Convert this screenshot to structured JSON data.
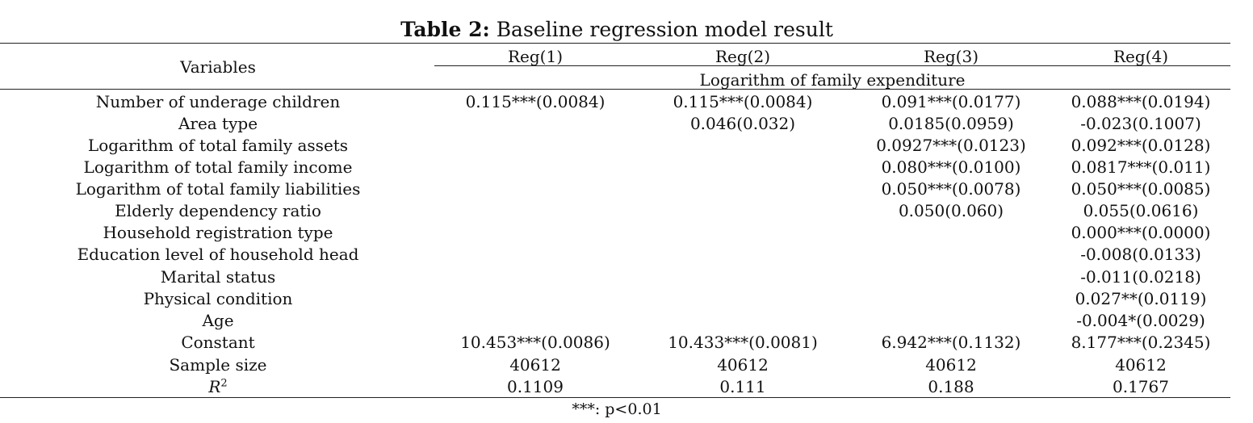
{
  "table": {
    "caption_label": "Table 2:",
    "caption_text": "Baseline regression model result",
    "variables_header": "Variables",
    "column_headers": [
      "Reg(1)",
      "Reg(2)",
      "Reg(3)",
      "Reg(4)"
    ],
    "dependent_variable": "Logarithm of family expenditure",
    "rows": [
      {
        "label": "Number of underage children",
        "values": [
          "0.115***(0.0084)",
          "0.115***(0.0084)",
          "0.091***(0.0177)",
          "0.088***(0.0194)"
        ]
      },
      {
        "label": "Area type",
        "values": [
          "",
          "0.046(0.032)",
          "0.0185(0.0959)",
          "-0.023(0.1007)"
        ]
      },
      {
        "label": "Logarithm of total family assets",
        "values": [
          "",
          "",
          "0.0927***(0.0123)",
          "0.092***(0.0128)"
        ]
      },
      {
        "label": "Logarithm of total family income",
        "values": [
          "",
          "",
          "0.080***(0.0100)",
          "0.0817***(0.011)"
        ]
      },
      {
        "label": "Logarithm of total family liabilities",
        "values": [
          "",
          "",
          "0.050***(0.0078)",
          "0.050***(0.0085)"
        ]
      },
      {
        "label": "Elderly dependency ratio",
        "values": [
          "",
          "",
          "0.050(0.060)",
          "0.055(0.0616)"
        ]
      },
      {
        "label": "Household registration type",
        "values": [
          "",
          "",
          "",
          "0.000***(0.0000)"
        ]
      },
      {
        "label": "Education level of household head",
        "values": [
          "",
          "",
          "",
          "-0.008(0.0133)"
        ]
      },
      {
        "label": "Marital status",
        "values": [
          "",
          "",
          "",
          "-0.011(0.0218)"
        ]
      },
      {
        "label": "Physical condition",
        "values": [
          "",
          "",
          "",
          "0.027**(0.0119)"
        ]
      },
      {
        "label": "Age",
        "values": [
          "",
          "",
          "",
          "-0.004*(0.0029)"
        ]
      },
      {
        "label": "Constant",
        "values": [
          "10.453***(0.0086)",
          "10.433***(0.0081)",
          "6.942***(0.1132)",
          "8.177***(0.2345)"
        ]
      },
      {
        "label": "Sample size",
        "values": [
          "40612",
          "40612",
          "40612",
          "40612"
        ]
      }
    ],
    "r2_label_base": "R",
    "r2_label_sup": "2",
    "r2_values": [
      "0.1109",
      "0.111",
      "0.188",
      "0.1767"
    ],
    "footnote": "***: p<0.01"
  }
}
